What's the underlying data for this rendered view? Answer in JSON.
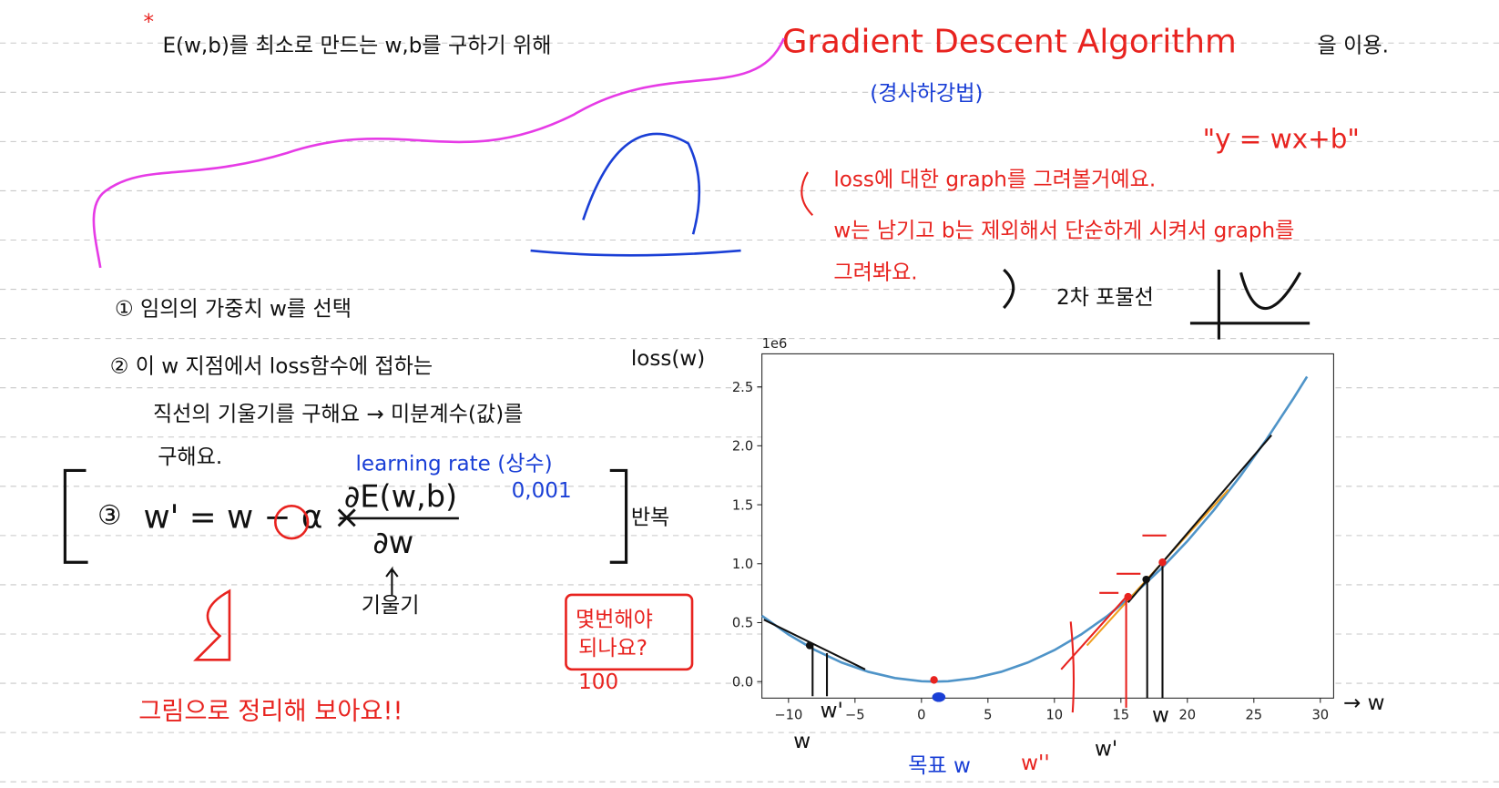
{
  "notes": {
    "heading": {
      "marker": "*",
      "text": "E(w,b)를 최소로 만드는 w,b를 구하기 위해",
      "method": "Gradient Descent Algorithm",
      "suffix": "을 이용."
    },
    "korean_name": "(경사하강법)",
    "model": "\"y = wx+b\"",
    "plan": [
      "loss에 대한 graph를 그려볼거예요.",
      "w는 남기고 b는 제외해서 단순하게 시켜서 graph를",
      "그려봐요."
    ],
    "parabola_note": "2차 포물선",
    "steps": [
      "① 임의의 가중치 w를 선택",
      "② 이 w 지점에서 loss함수에 접하는",
      "직선의 기울기를 구해요 → 미분계수(값)를",
      "구해요."
    ],
    "formula": {
      "number": "③",
      "lhs": "w' = w − α ×",
      "numerator": "∂E(w,b)",
      "denominator": "∂w"
    },
    "learning_rate": "learning rate (상수)",
    "rate_value": "0,001",
    "repeat": "반복",
    "slope": "기울기",
    "question": [
      "몇번해야",
      "되나요?"
    ],
    "answer": "100",
    "summary": "그림으로 정리해 보아요!!",
    "y_axis_note": "loss(w)",
    "x_axis_note": "→ w",
    "target": "목표 w",
    "point_labels": [
      "w",
      "w'",
      "w''",
      "w'",
      "w"
    ]
  },
  "chart_data": {
    "type": "line",
    "color": "#4f94c8",
    "y_offset_label": "1e6",
    "x": [
      -12,
      -10,
      -8,
      -6,
      -4,
      -2,
      0,
      1,
      2,
      4,
      6,
      8,
      10,
      12,
      14,
      16,
      18,
      20,
      22,
      24,
      26,
      28,
      29
    ],
    "values": [
      0.558,
      0.399,
      0.267,
      0.162,
      0.083,
      0.03,
      0.003,
      0,
      0.003,
      0.03,
      0.083,
      0.162,
      0.267,
      0.399,
      0.558,
      0.743,
      0.954,
      1.191,
      1.455,
      1.746,
      2.063,
      2.406,
      2.587
    ],
    "xlim": [
      -12,
      31
    ],
    "xticks": [
      {
        "value": -10,
        "label": "−10"
      },
      {
        "value": -5,
        "label": "−5"
      },
      0,
      5,
      10,
      15,
      20,
      25,
      30
    ],
    "ylim": [
      -0.14,
      2.78
    ],
    "yticks": [
      {
        "value": 0,
        "label": "0.0"
      },
      0.5,
      {
        "value": 1,
        "label": "1.0"
      },
      1.5,
      {
        "value": 2,
        "label": "2.0"
      },
      2.5
    ]
  }
}
